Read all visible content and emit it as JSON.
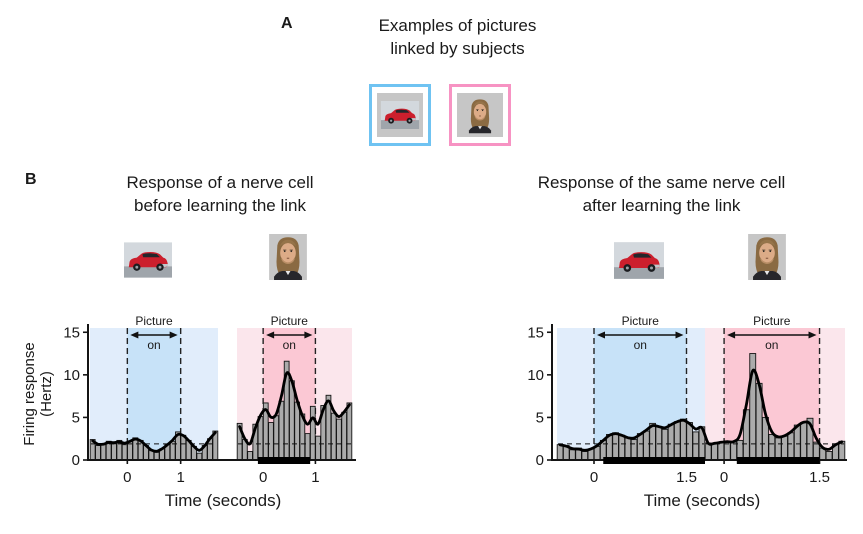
{
  "colors": {
    "blue_frame_border": "#6fc3f2",
    "pink_frame_border": "#f793c3",
    "blue_inner": "#c7e2f8",
    "blue_outer": "#e1edfb",
    "pink_inner": "#fbc8d4",
    "pink_outer": "#fbe6ec",
    "bar_fill": "#ababab",
    "bar_stroke": "#141414",
    "smooth_line": "#000000",
    "significance_bar": "#000000",
    "axis": "#141414",
    "text": "#1a1a1a",
    "thumbnail_bg": "#c6c6c6"
  },
  "panel_a": {
    "label": "A",
    "title_line1": "Examples of pictures",
    "title_line2": "linked by subjects",
    "pictures": [
      {
        "name": "car picture",
        "frame": "blue"
      },
      {
        "name": "face picture",
        "frame": "pink"
      }
    ]
  },
  "panel_b": {
    "label": "B"
  },
  "chart_data": [
    {
      "type": "bar+line",
      "title_line1": "Response of a nerve cell",
      "title_line2": "before learning the link",
      "ylabel_line1": "Firing response",
      "ylabel_line2": "(Hertz)",
      "xlabel": "Time (seconds)",
      "yticks": [
        0,
        5,
        10,
        15
      ],
      "ylim": [
        0,
        15.5
      ],
      "baseline_hz": 1.9,
      "bin_width_s": 0.1,
      "picture_label": "Picture",
      "on_label": "on",
      "line_continuous_across_trials": false,
      "trials": [
        {
          "stimulus": "car",
          "window_s": [
            -0.7,
            1.7
          ],
          "picture_on_s": [
            0,
            1
          ],
          "xticks": [
            0,
            1
          ],
          "bg_outer": "blue_outer",
          "bg_inner": "blue_inner",
          "bars_hz": [
            2.4,
            1.7,
            1.8,
            2.2,
            1.9,
            2.3,
            1.8,
            2.2,
            2.6,
            2.3,
            1.7,
            1.1,
            0.9,
            1.3,
            1.8,
            2.2,
            3.3,
            2.9,
            2.3,
            1.6,
            0.8,
            1.7,
            2.5,
            3.4
          ],
          "significance_bar_s": null
        },
        {
          "stimulus": "face",
          "window_s": [
            -0.5,
            1.7
          ],
          "picture_on_s": [
            0,
            1
          ],
          "xticks": [
            0,
            1
          ],
          "bg_outer": "pink_outer",
          "bg_inner": "pink_inner",
          "bars_hz": [
            4.3,
            2.4,
            1.0,
            4.2,
            5.1,
            6.7,
            4.4,
            5.2,
            6.9,
            11.6,
            9.3,
            6.8,
            5.4,
            3.1,
            6.3,
            2.8,
            6.4,
            7.6,
            5.5,
            4.8,
            5.6,
            6.7
          ],
          "significance_bar_s": [
            -0.1,
            0.9
          ]
        }
      ]
    },
    {
      "type": "bar+line",
      "title_line1": "Response of the same nerve cell",
      "title_line2": "after learning the link",
      "ylabel_line1": null,
      "ylabel_line2": null,
      "xlabel": "Time (seconds)",
      "yticks": [
        0,
        5,
        10,
        15
      ],
      "ylim": [
        0,
        15.5
      ],
      "baseline_hz": 1.9,
      "bin_width_s": 0.1,
      "picture_label": "Picture",
      "on_label": "on",
      "line_continuous_across_trials": true,
      "trials": [
        {
          "stimulus": "car",
          "window_s": [
            -0.6,
            1.8
          ],
          "picture_on_s": [
            0,
            1.5
          ],
          "xticks": [
            0,
            1.5
          ],
          "bg_outer": "blue_outer",
          "bg_inner": "blue_inner",
          "bars_hz": [
            1.8,
            1.7,
            1.2,
            1.4,
            1.0,
            1.3,
            1.6,
            2.3,
            3.0,
            3.2,
            2.9,
            2.6,
            2.4,
            3.1,
            3.4,
            4.3,
            3.9,
            3.6,
            4.2,
            4.5,
            4.8,
            4.4,
            3.3,
            3.9
          ],
          "significance_bar_s": [
            0.15,
            1.8
          ]
        },
        {
          "stimulus": "face",
          "window_s": [
            -0.3,
            1.9
          ],
          "picture_on_s": [
            0,
            1.5
          ],
          "xticks": [
            0,
            1.5
          ],
          "bg_outer": "pink_outer",
          "bg_inner": "pink_inner",
          "bars_hz": [
            2.0,
            1.9,
            2.1,
            2.2,
            2.1,
            2.3,
            5.9,
            12.5,
            9.0,
            5.0,
            3.0,
            2.6,
            2.8,
            3.2,
            4.1,
            4.4,
            4.9,
            2.1,
            1.4,
            1.0,
            1.9,
            2.2
          ],
          "significance_bar_s": [
            0.2,
            1.5
          ]
        }
      ]
    }
  ]
}
